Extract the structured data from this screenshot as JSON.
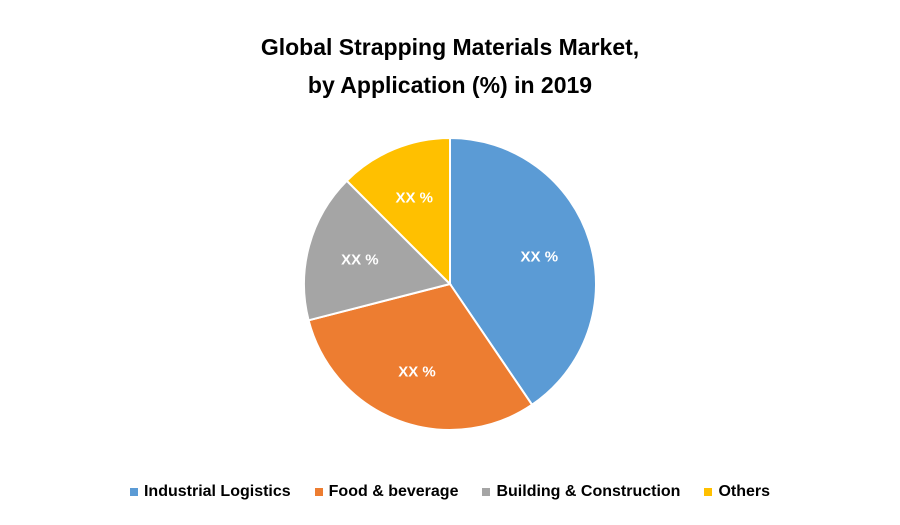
{
  "chart_data": {
    "type": "pie",
    "title": [
      "Global Strapping Materials Market,",
      "by Application (%) in 2019"
    ],
    "categories": [
      "Industrial Logistics",
      "Food & beverage",
      "Building & Construction",
      "Others"
    ],
    "values": [
      40.5,
      30.5,
      16.5,
      12.5
    ],
    "data_labels": [
      "XX %",
      "XX %",
      "XX %",
      "XX %"
    ],
    "colors": [
      "#5B9BD5",
      "#ED7D31",
      "#A5A5A5",
      "#FFC000"
    ],
    "legend_position": "bottom"
  }
}
